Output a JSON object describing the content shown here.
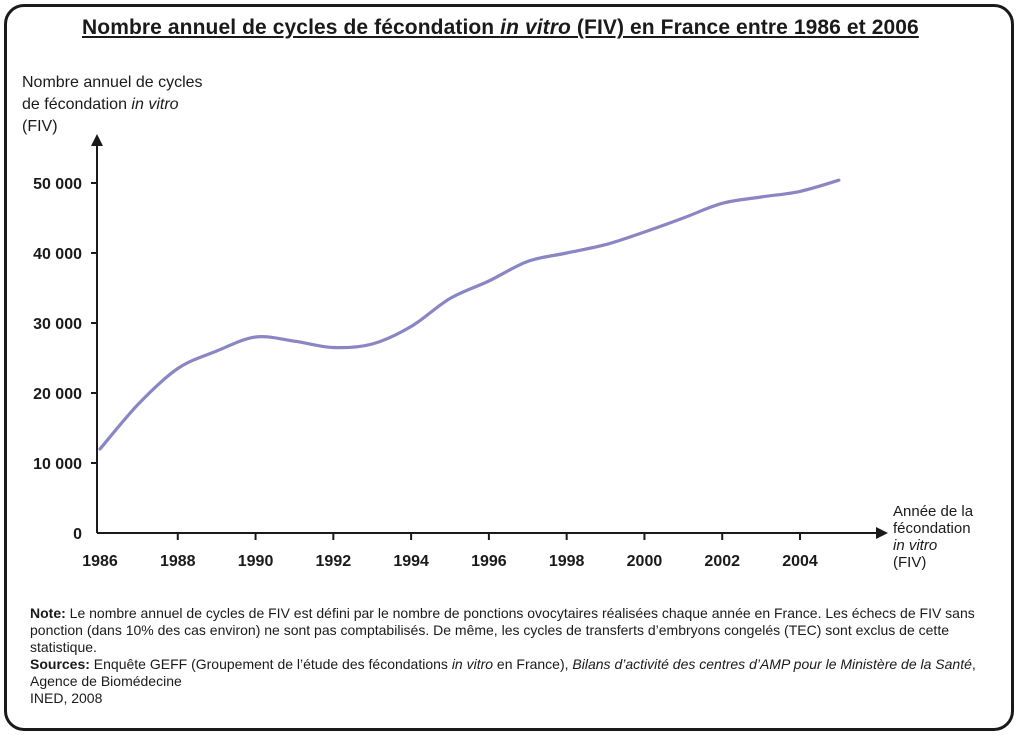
{
  "title": {
    "before": "Nombre annuel de cycles de fécondation ",
    "italic": "in vitro",
    "after": " (FIV) en France entre 1986 et 2006"
  },
  "axes": {
    "y_label_line1": "Nombre annuel de cycles",
    "y_label_line2_before": "de fécondation ",
    "y_label_line2_italic": "in vitro",
    "y_label_line3": "(FIV)",
    "x_label_line1": "Année de la",
    "x_label_line2": "fécondation",
    "x_label_line3_italic": "in vitro",
    "x_label_line4": "(FIV)"
  },
  "notes": {
    "note_label": "Note:",
    "note_text": " Le nombre annuel de cycles de FIV est défini par le nombre de ponctions ovocytaires réalisées chaque année en France. Les  échecs de FIV sans ponction (dans 10% des cas environ) ne sont pas comptabilisés. De même, les cycles de transferts d’embryons congelés (TEC) sont exclus de cette statistique.",
    "sources_label": "Sources:",
    "sources_text1": " Enquête GEFF (Groupement de l’étude des fécondations ",
    "sources_italic1": "in vitro",
    "sources_text2": " en France), ",
    "sources_italic2": "Bilans d’activité des centres d’AMP pour le Ministère de la Santé",
    "sources_text3": ", Agence de Biomédecine",
    "credit": "INED, 2008"
  },
  "chart_data": {
    "type": "line",
    "ylim": [
      0,
      50000
    ],
    "yticks": [
      0,
      10000,
      20000,
      30000,
      40000,
      50000
    ],
    "ytick_labels": [
      "0",
      "10 000",
      "20 000",
      "30 000",
      "40 000",
      "50 000"
    ],
    "xticks": [
      1986,
      1988,
      1990,
      1992,
      1994,
      1996,
      1998,
      2000,
      2002,
      2004
    ],
    "xtick_labels": [
      "1986",
      "1988",
      "1990",
      "1992",
      "1994",
      "1996",
      "1998",
      "2000",
      "2002",
      "2004"
    ],
    "grid": false,
    "line_color": "#8a86c4",
    "series": [
      {
        "x": [
          1986,
          1987,
          1988,
          1989,
          1990,
          1991,
          1992,
          1993,
          1994,
          1995,
          1996,
          1997,
          1998,
          1999,
          2000,
          2001,
          2002,
          2003,
          2004,
          2005
        ],
        "values": [
          12000,
          18500,
          23500,
          26000,
          28000,
          27400,
          26500,
          27000,
          29500,
          33500,
          36000,
          38800,
          40000,
          41200,
          43000,
          45000,
          47100,
          48000,
          48800,
          50400
        ]
      }
    ]
  }
}
